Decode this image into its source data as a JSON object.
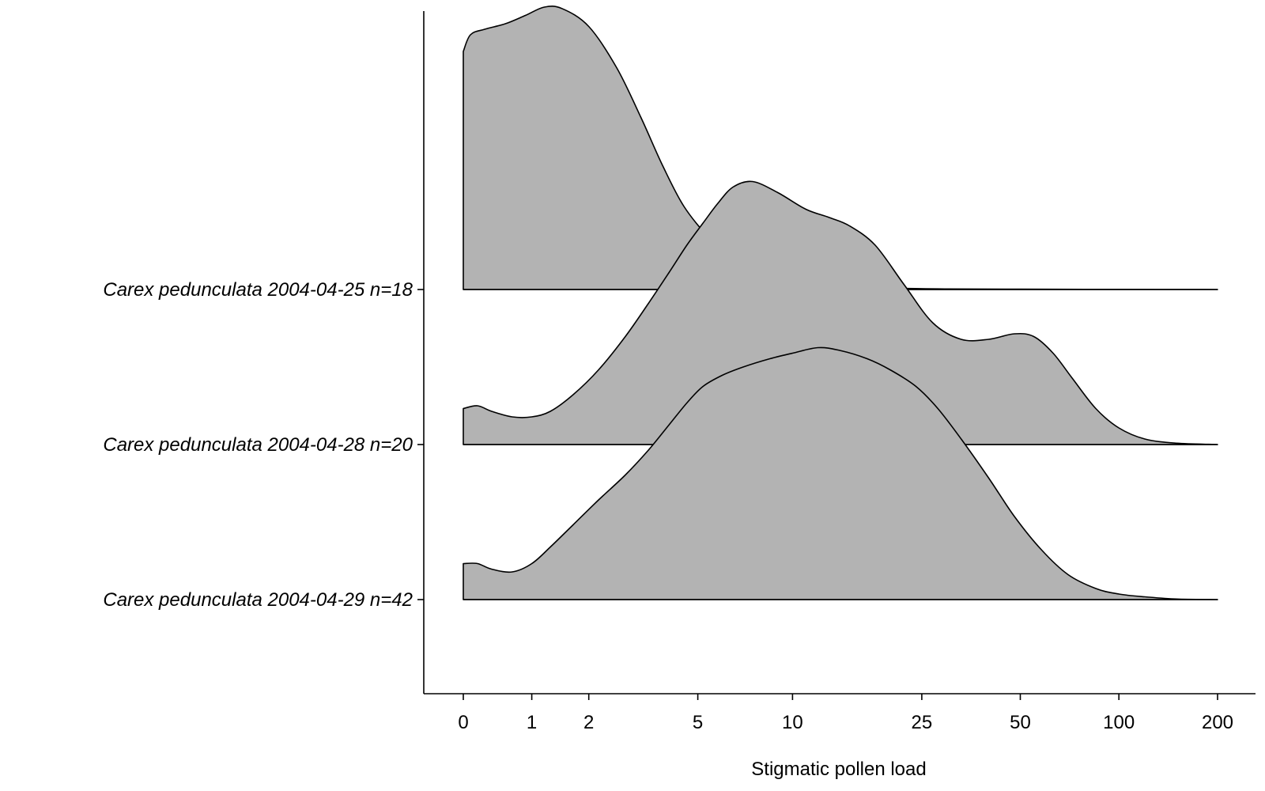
{
  "chart_data": {
    "type": "area",
    "subtype": "ridgeline-density",
    "title": "",
    "xlabel": "Stigmatic pollen load",
    "ylabel": "",
    "x_scale": "pseudo-log",
    "x_ticks": [
      0,
      1,
      2,
      5,
      10,
      25,
      50,
      100,
      200
    ],
    "x_tick_labels": [
      "0",
      "1",
      "2",
      "5",
      "10",
      "25",
      "50",
      "100",
      "200"
    ],
    "xlim": [
      0,
      200
    ],
    "grid": false,
    "legend": "none",
    "fill_color": "#b3b3b3",
    "line_color": "#000000",
    "series": [
      {
        "name": "Carex pedunculata 2004-04-25 n=18",
        "x": [
          0,
          0.1,
          0.3,
          0.6,
          0.9,
          1.2,
          1.5,
          2.0,
          2.6,
          3.2,
          3.8,
          4.5,
          5.5,
          6.5,
          8,
          10,
          13,
          17,
          22,
          30,
          50,
          100,
          200
        ],
        "density": [
          0.86,
          0.92,
          0.94,
          0.96,
          0.99,
          1.02,
          1.015,
          0.95,
          0.8,
          0.62,
          0.45,
          0.3,
          0.18,
          0.1,
          0.055,
          0.03,
          0.015,
          0.008,
          0.004,
          0.002,
          0.001,
          0.0005,
          0
        ]
      },
      {
        "name": "Carex pedunculata 2004-04-28 n=20",
        "x": [
          0,
          0.2,
          0.4,
          0.7,
          1.0,
          1.3,
          1.7,
          2.2,
          2.8,
          3.4,
          4.0,
          4.6,
          5.2,
          5.8,
          6.5,
          7.5,
          9,
          11,
          13,
          15,
          18,
          22,
          27,
          33,
          40,
          48,
          55,
          63,
          72,
          85,
          100,
          120,
          150,
          200
        ],
        "density": [
          0.13,
          0.14,
          0.12,
          0.1,
          0.1,
          0.12,
          0.18,
          0.27,
          0.39,
          0.51,
          0.62,
          0.72,
          0.8,
          0.87,
          0.93,
          0.95,
          0.91,
          0.85,
          0.82,
          0.79,
          0.72,
          0.58,
          0.44,
          0.38,
          0.38,
          0.4,
          0.39,
          0.33,
          0.24,
          0.13,
          0.06,
          0.02,
          0.005,
          0
        ]
      },
      {
        "name": "Carex pedunculata 2004-04-29 n=42",
        "x": [
          0,
          0.2,
          0.4,
          0.7,
          1.0,
          1.3,
          1.7,
          2.2,
          2.8,
          3.4,
          4.0,
          4.6,
          5.2,
          6.0,
          7.0,
          8.5,
          10,
          12,
          14,
          17,
          20,
          24,
          28,
          33,
          40,
          48,
          58,
          70,
          85,
          100,
          120,
          150,
          200
        ],
        "density": [
          0.13,
          0.13,
          0.11,
          0.1,
          0.13,
          0.19,
          0.27,
          0.36,
          0.45,
          0.54,
          0.63,
          0.71,
          0.77,
          0.81,
          0.84,
          0.87,
          0.89,
          0.91,
          0.9,
          0.87,
          0.83,
          0.77,
          0.69,
          0.58,
          0.44,
          0.3,
          0.18,
          0.09,
          0.04,
          0.02,
          0.01,
          0.002,
          0
        ]
      }
    ]
  }
}
